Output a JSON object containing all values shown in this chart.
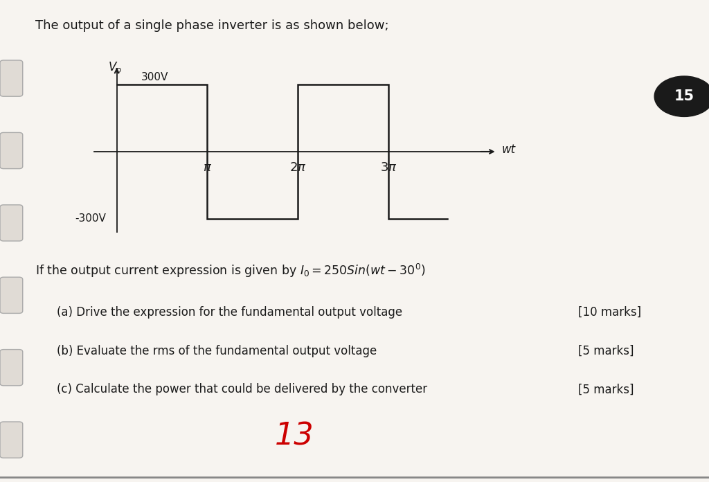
{
  "title": "The output of a single phase inverter is as shown below;",
  "vo_label": "V$_o$",
  "wt_label": "wt",
  "pos_voltage": "300V",
  "neg_voltage": "-300V",
  "question_line": "If the output current expression is given by $I_0 = 250Sin(wt - 30^0)$",
  "parts": [
    {
      "label": "(a) Drive the expression for the fundamental output voltage",
      "marks": "[10 marks]"
    },
    {
      "label": "(b) Evaluate the rms of the fundamental output voltage",
      "marks": "[5 marks]"
    },
    {
      "label": "(c) Calculate the power that could be delivered by the converter",
      "marks": "[5 marks]"
    }
  ],
  "page_number": "15",
  "handwritten_number": "13",
  "bg_color": "#f7f4f0",
  "line_color": "#1a1a1a",
  "text_color": "#1a1a1a"
}
